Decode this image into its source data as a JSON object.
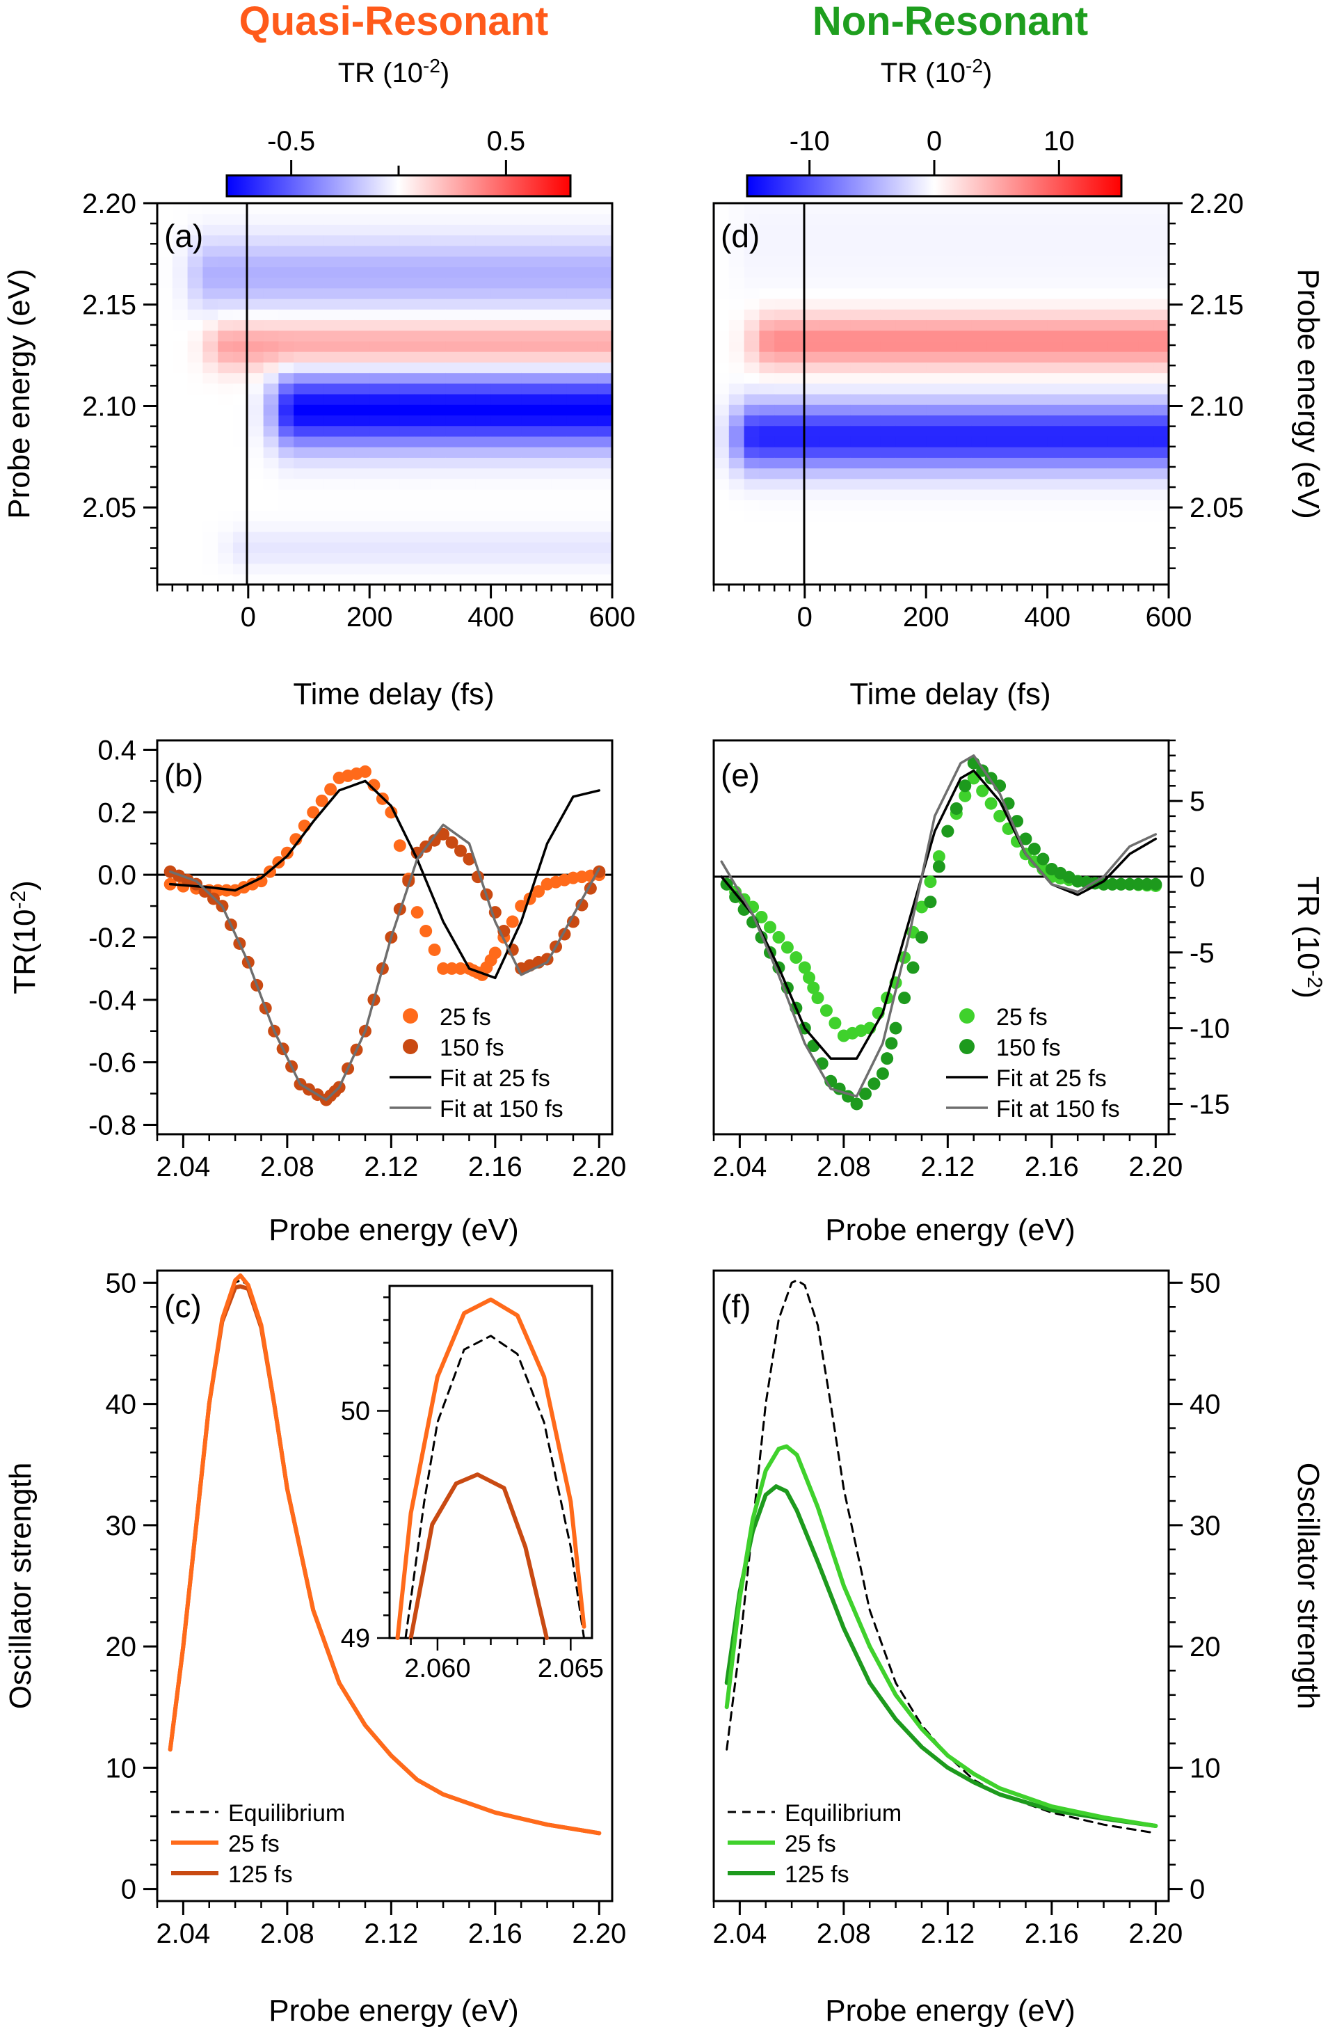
{
  "headers": {
    "left": "Quasi-Resonant",
    "right": "Non-Resonant"
  },
  "colors": {
    "orange_header": "#ff5a1a",
    "green_header": "#1e9e1e",
    "orange_25": "#ff6a1a",
    "orange_150": "#c94a12",
    "green_25": "#3fd12c",
    "green_150": "#1d9a1d",
    "fit_25": "#000000",
    "fit_150": "#6e6e6e",
    "cmap_neg": "#0000ff",
    "cmap_pos": "#ff0000"
  },
  "chart_data": [
    {
      "panel": "(a)",
      "type": "heatmap",
      "colorbar": {
        "title": "TR (10",
        "exponent": "-2",
        "close": ")",
        "range": [
          -0.8,
          0.8
        ],
        "ticks": [
          "-0.5",
          "0.5"
        ],
        "tick_values": [
          -0.5,
          0.5
        ]
      },
      "xlabel": "Time delay (fs)",
      "ylabel": "Probe energy (eV)",
      "xlim": [
        -150,
        600
      ],
      "ylim": [
        2.012,
        2.2
      ],
      "xticks": [
        "0",
        "200",
        "400",
        "600"
      ],
      "yticks": [
        "2.05",
        "2.10",
        "2.15",
        "2.20"
      ],
      "features": [
        {
          "sign": "neg",
          "t": [
            -60,
            600
          ],
          "e_center": 2.165,
          "e_width": 0.018,
          "amp": 0.25
        },
        {
          "sign": "pos",
          "t": [
            -30,
            600
          ],
          "e_center": 2.13,
          "e_width": 0.012,
          "amp": 0.3
        },
        {
          "sign": "neg",
          "t": [
            80,
            600
          ],
          "e_center": 2.098,
          "e_width": 0.018,
          "amp": 0.8
        },
        {
          "sign": "neg",
          "t": [
            0,
            600
          ],
          "e_center": 2.03,
          "e_width": 0.01,
          "amp": 0.08
        }
      ]
    },
    {
      "panel": "(b)",
      "type": "scatter",
      "xlabel": "Probe energy (eV)",
      "ylabel": "TR(10",
      "ylabel_exp": "-2",
      "ylabel_close": ")",
      "xlim": [
        2.03,
        2.205
      ],
      "ylim": [
        -0.83,
        0.43
      ],
      "xticks": [
        "2.04",
        "2.08",
        "2.12",
        "2.16",
        "2.20"
      ],
      "yticks": [
        "0.4",
        "0.2",
        "0.0",
        "-0.2",
        "-0.4",
        "-0.6",
        "-0.8"
      ],
      "series": [
        {
          "name": "25 fs",
          "kind": "points",
          "x": [
            2.035,
            2.05,
            2.06,
            2.07,
            2.08,
            2.09,
            2.1,
            2.11,
            2.12,
            2.13,
            2.14,
            2.15,
            2.155,
            2.16,
            2.17,
            2.18,
            2.19,
            2.2
          ],
          "y": [
            -0.03,
            -0.05,
            -0.05,
            -0.02,
            0.07,
            0.2,
            0.31,
            0.33,
            0.2,
            -0.12,
            -0.3,
            -0.3,
            -0.32,
            -0.25,
            -0.1,
            -0.03,
            -0.01,
            0.0
          ]
        },
        {
          "name": "150 fs",
          "kind": "points",
          "x": [
            2.035,
            2.045,
            2.055,
            2.065,
            2.075,
            2.085,
            2.095,
            2.1,
            2.11,
            2.12,
            2.13,
            2.14,
            2.15,
            2.16,
            2.17,
            2.18,
            2.19,
            2.2
          ],
          "y": [
            0.01,
            -0.03,
            -0.1,
            -0.28,
            -0.5,
            -0.67,
            -0.72,
            -0.68,
            -0.5,
            -0.2,
            0.07,
            0.13,
            0.05,
            -0.12,
            -0.3,
            -0.27,
            -0.15,
            0.01
          ]
        },
        {
          "name": "Fit at 25 fs",
          "kind": "line",
          "x": [
            2.035,
            2.05,
            2.06,
            2.07,
            2.08,
            2.09,
            2.1,
            2.11,
            2.12,
            2.13,
            2.14,
            2.15,
            2.16,
            2.17,
            2.18,
            2.19,
            2.2
          ],
          "y": [
            -0.03,
            -0.04,
            -0.05,
            -0.01,
            0.06,
            0.17,
            0.27,
            0.3,
            0.22,
            0.05,
            -0.15,
            -0.3,
            -0.33,
            -0.15,
            0.1,
            0.25,
            0.27
          ]
        },
        {
          "name": "Fit at 150 fs",
          "kind": "line",
          "x": [
            2.035,
            2.045,
            2.055,
            2.065,
            2.075,
            2.085,
            2.095,
            2.1,
            2.11,
            2.12,
            2.13,
            2.14,
            2.15,
            2.16,
            2.17,
            2.18,
            2.19,
            2.2
          ],
          "y": [
            0.01,
            -0.02,
            -0.1,
            -0.28,
            -0.5,
            -0.67,
            -0.72,
            -0.68,
            -0.5,
            -0.2,
            0.05,
            0.16,
            0.1,
            -0.15,
            -0.32,
            -0.28,
            -0.13,
            0.02
          ]
        }
      ],
      "zero_line": true,
      "legend": "bottom-right"
    },
    {
      "panel": "(c)",
      "type": "line",
      "xlabel": "Probe energy (eV)",
      "ylabel": "Oscillator strength",
      "xlim": [
        2.03,
        2.205
      ],
      "ylim": [
        -1,
        51
      ],
      "xticks": [
        "2.04",
        "2.08",
        "2.12",
        "2.16",
        "2.20"
      ],
      "yticks": [
        "0",
        "10",
        "20",
        "30",
        "40",
        "50"
      ],
      "series": [
        {
          "name": "Equilibrium",
          "kind": "dashed",
          "x": [
            2.035,
            2.04,
            2.045,
            2.05,
            2.055,
            2.06,
            2.062,
            2.065,
            2.07,
            2.075,
            2.08,
            2.09,
            2.1,
            2.11,
            2.12,
            2.13,
            2.14,
            2.16,
            2.18,
            2.2
          ],
          "y": [
            11.5,
            20,
            30,
            40,
            47,
            50,
            50.2,
            49.8,
            46.5,
            40,
            33,
            23,
            17,
            13.5,
            11,
            9,
            7.8,
            6.3,
            5.3,
            4.6
          ]
        },
        {
          "name": "25 fs",
          "kind": "line",
          "x": [
            2.035,
            2.04,
            2.045,
            2.05,
            2.055,
            2.06,
            2.062,
            2.065,
            2.07,
            2.075,
            2.08,
            2.09,
            2.1,
            2.11,
            2.12,
            2.13,
            2.14,
            2.16,
            2.18,
            2.2
          ],
          "y": [
            11.5,
            20,
            30,
            40,
            47,
            50.2,
            50.6,
            49.8,
            46.5,
            40,
            33,
            23,
            17,
            13.5,
            11,
            9,
            7.8,
            6.3,
            5.3,
            4.6
          ]
        },
        {
          "name": "125 fs",
          "kind": "line",
          "x": [
            2.035,
            2.04,
            2.045,
            2.05,
            2.055,
            2.06,
            2.062,
            2.065,
            2.07,
            2.075,
            2.08,
            2.09,
            2.1,
            2.11,
            2.12,
            2.13,
            2.14,
            2.16,
            2.18,
            2.2
          ],
          "y": [
            11.5,
            20,
            30,
            40,
            46.8,
            49.6,
            49.7,
            49.5,
            46.3,
            40,
            33,
            23,
            17,
            13.5,
            11,
            9,
            7.8,
            6.3,
            5.3,
            4.6
          ]
        }
      ],
      "inset": {
        "xlim": [
          2.0582,
          2.0658
        ],
        "ylim": [
          49,
          50.55
        ],
        "xticks": [
          "2.060",
          "2.065"
        ],
        "yticks": [
          "49",
          "50"
        ],
        "series": [
          {
            "name": "Equilibrium",
            "kind": "dashed",
            "x": [
              2.0588,
              2.0595,
              2.06,
              2.061,
              2.062,
              2.063,
              2.064,
              2.065,
              2.0655
            ],
            "y": [
              49.0,
              49.6,
              49.95,
              50.27,
              50.33,
              50.25,
              49.95,
              49.4,
              49.0
            ]
          },
          {
            "name": "25 fs",
            "kind": "line",
            "x": [
              2.0585,
              2.059,
              2.06,
              2.061,
              2.062,
              2.063,
              2.064,
              2.065,
              2.0655
            ],
            "y": [
              49.0,
              49.55,
              50.15,
              50.43,
              50.49,
              50.42,
              50.15,
              49.6,
              49.05
            ]
          },
          {
            "name": "125 fs",
            "kind": "line",
            "x": [
              2.059,
              2.0598,
              2.0607,
              2.0615,
              2.0625,
              2.0633,
              2.0641
            ],
            "y": [
              49.0,
              49.5,
              49.68,
              49.72,
              49.66,
              49.4,
              49.0
            ]
          }
        ]
      },
      "legend": "bottom-left"
    },
    {
      "panel": "(d)",
      "type": "heatmap",
      "colorbar": {
        "title": "TR (10",
        "exponent": "-2",
        "close": ")",
        "range": [
          -15,
          15
        ],
        "ticks": [
          "-10",
          "0",
          "10"
        ],
        "tick_values": [
          -10,
          0,
          10
        ]
      },
      "xlabel": "Time delay (fs)",
      "ylabel": "Probe energy (eV)",
      "xlim": [
        -150,
        600
      ],
      "ylim": [
        2.012,
        2.2
      ],
      "xticks": [
        "0",
        "200",
        "400",
        "600"
      ],
      "yticks": [
        "2.05",
        "2.10",
        "2.15",
        "2.20"
      ],
      "features": [
        {
          "sign": "pos",
          "t": [
            -50,
            600
          ],
          "e_center": 2.132,
          "e_width": 0.013,
          "amp": 7
        },
        {
          "sign": "neg",
          "t": [
            -80,
            600
          ],
          "e_center": 2.085,
          "e_width": 0.016,
          "amp": 13
        },
        {
          "sign": "neg",
          "t": [
            -80,
            600
          ],
          "e_center": 2.18,
          "e_width": 0.03,
          "amp": 0.6
        }
      ]
    },
    {
      "panel": "(e)",
      "type": "scatter",
      "xlabel": "Probe energy (eV)",
      "ylabel": "TR (10",
      "ylabel_exp": "-2",
      "ylabel_close": ")",
      "xlim": [
        2.03,
        2.205
      ],
      "ylim": [
        -17,
        9
      ],
      "xticks": [
        "2.04",
        "2.08",
        "2.12",
        "2.16",
        "2.20"
      ],
      "yticks": [
        "5",
        "0",
        "-5",
        "-10",
        "-15"
      ],
      "series": [
        {
          "name": "25 fs",
          "kind": "points",
          "x": [
            2.035,
            2.045,
            2.055,
            2.065,
            2.07,
            2.08,
            2.09,
            2.1,
            2.11,
            2.12,
            2.13,
            2.14,
            2.15,
            2.16,
            2.17,
            2.18,
            2.19,
            2.2
          ],
          "y": [
            -0.5,
            -2,
            -4,
            -6,
            -8,
            -10.5,
            -10,
            -7,
            -2,
            3,
            6.5,
            4,
            1.5,
            0,
            -0.3,
            -0.5,
            -0.5,
            -0.6
          ]
        },
        {
          "name": "150 fs",
          "kind": "points",
          "x": [
            2.035,
            2.045,
            2.055,
            2.065,
            2.075,
            2.085,
            2.095,
            2.1,
            2.11,
            2.12,
            2.13,
            2.14,
            2.15,
            2.16,
            2.17,
            2.18,
            2.19,
            2.2
          ],
          "y": [
            -0.5,
            -3,
            -6,
            -10,
            -13.5,
            -15,
            -13,
            -10,
            -4,
            3,
            7.5,
            6,
            2.5,
            0.5,
            -0.3,
            -0.5,
            -0.5,
            -0.5
          ]
        },
        {
          "name": "Fit at 25 fs",
          "kind": "line",
          "x": [
            2.033,
            2.045,
            2.055,
            2.065,
            2.075,
            2.085,
            2.095,
            2.105,
            2.115,
            2.125,
            2.13,
            2.14,
            2.15,
            2.16,
            2.17,
            2.18,
            2.19,
            2.2
          ],
          "y": [
            0,
            -2.5,
            -6,
            -10,
            -12,
            -12,
            -9,
            -3,
            3,
            6.5,
            7,
            5,
            1.5,
            -0.5,
            -1.2,
            -0.3,
            1.5,
            2.5
          ]
        },
        {
          "name": "Fit at 150 fs",
          "kind": "line",
          "x": [
            2.033,
            2.045,
            2.055,
            2.065,
            2.075,
            2.085,
            2.095,
            2.105,
            2.115,
            2.125,
            2.13,
            2.14,
            2.15,
            2.16,
            2.17,
            2.18,
            2.19,
            2.2
          ],
          "y": [
            1,
            -2.5,
            -6.5,
            -11,
            -14,
            -14.5,
            -11,
            -4,
            4,
            7.5,
            8,
            5.5,
            1.5,
            -0.5,
            -1,
            0,
            2,
            2.8
          ]
        }
      ],
      "zero_line": true,
      "legend": "bottom-right"
    },
    {
      "panel": "(f)",
      "type": "line",
      "xlabel": "Probe energy (eV)",
      "ylabel": "Oscillator strength",
      "xlim": [
        2.03,
        2.205
      ],
      "ylim": [
        -1,
        51
      ],
      "xticks": [
        "2.04",
        "2.08",
        "2.12",
        "2.16",
        "2.20"
      ],
      "yticks": [
        "0",
        "10",
        "20",
        "30",
        "40",
        "50"
      ],
      "series": [
        {
          "name": "Equilibrium",
          "kind": "dashed",
          "x": [
            2.035,
            2.04,
            2.045,
            2.05,
            2.055,
            2.06,
            2.062,
            2.065,
            2.07,
            2.075,
            2.08,
            2.09,
            2.1,
            2.11,
            2.12,
            2.13,
            2.14,
            2.16,
            2.18,
            2.2
          ],
          "y": [
            11.5,
            20,
            30,
            40,
            47,
            50,
            50.2,
            49.8,
            46.5,
            40,
            33,
            23,
            17,
            13.5,
            11,
            9,
            7.8,
            6.3,
            5.3,
            4.6
          ]
        },
        {
          "name": "25 fs",
          "kind": "line",
          "x": [
            2.035,
            2.04,
            2.045,
            2.05,
            2.055,
            2.058,
            2.062,
            2.07,
            2.08,
            2.09,
            2.1,
            2.11,
            2.12,
            2.13,
            2.14,
            2.16,
            2.18,
            2.2
          ],
          "y": [
            15,
            24,
            30.5,
            34.5,
            36.3,
            36.5,
            35.8,
            31.5,
            25,
            20,
            16,
            13.2,
            11,
            9.5,
            8.3,
            6.8,
            5.9,
            5.2
          ]
        },
        {
          "name": "125 fs",
          "kind": "line",
          "x": [
            2.035,
            2.04,
            2.045,
            2.05,
            2.054,
            2.058,
            2.062,
            2.07,
            2.08,
            2.09,
            2.1,
            2.11,
            2.12,
            2.13,
            2.14,
            2.16,
            2.18,
            2.2
          ],
          "y": [
            17,
            24.5,
            29.5,
            32.5,
            33.2,
            32.8,
            31.2,
            27,
            21.5,
            17,
            14,
            11.7,
            10,
            8.8,
            7.8,
            6.5,
            5.8,
            5.2
          ]
        }
      ],
      "legend": "bottom-left"
    }
  ]
}
